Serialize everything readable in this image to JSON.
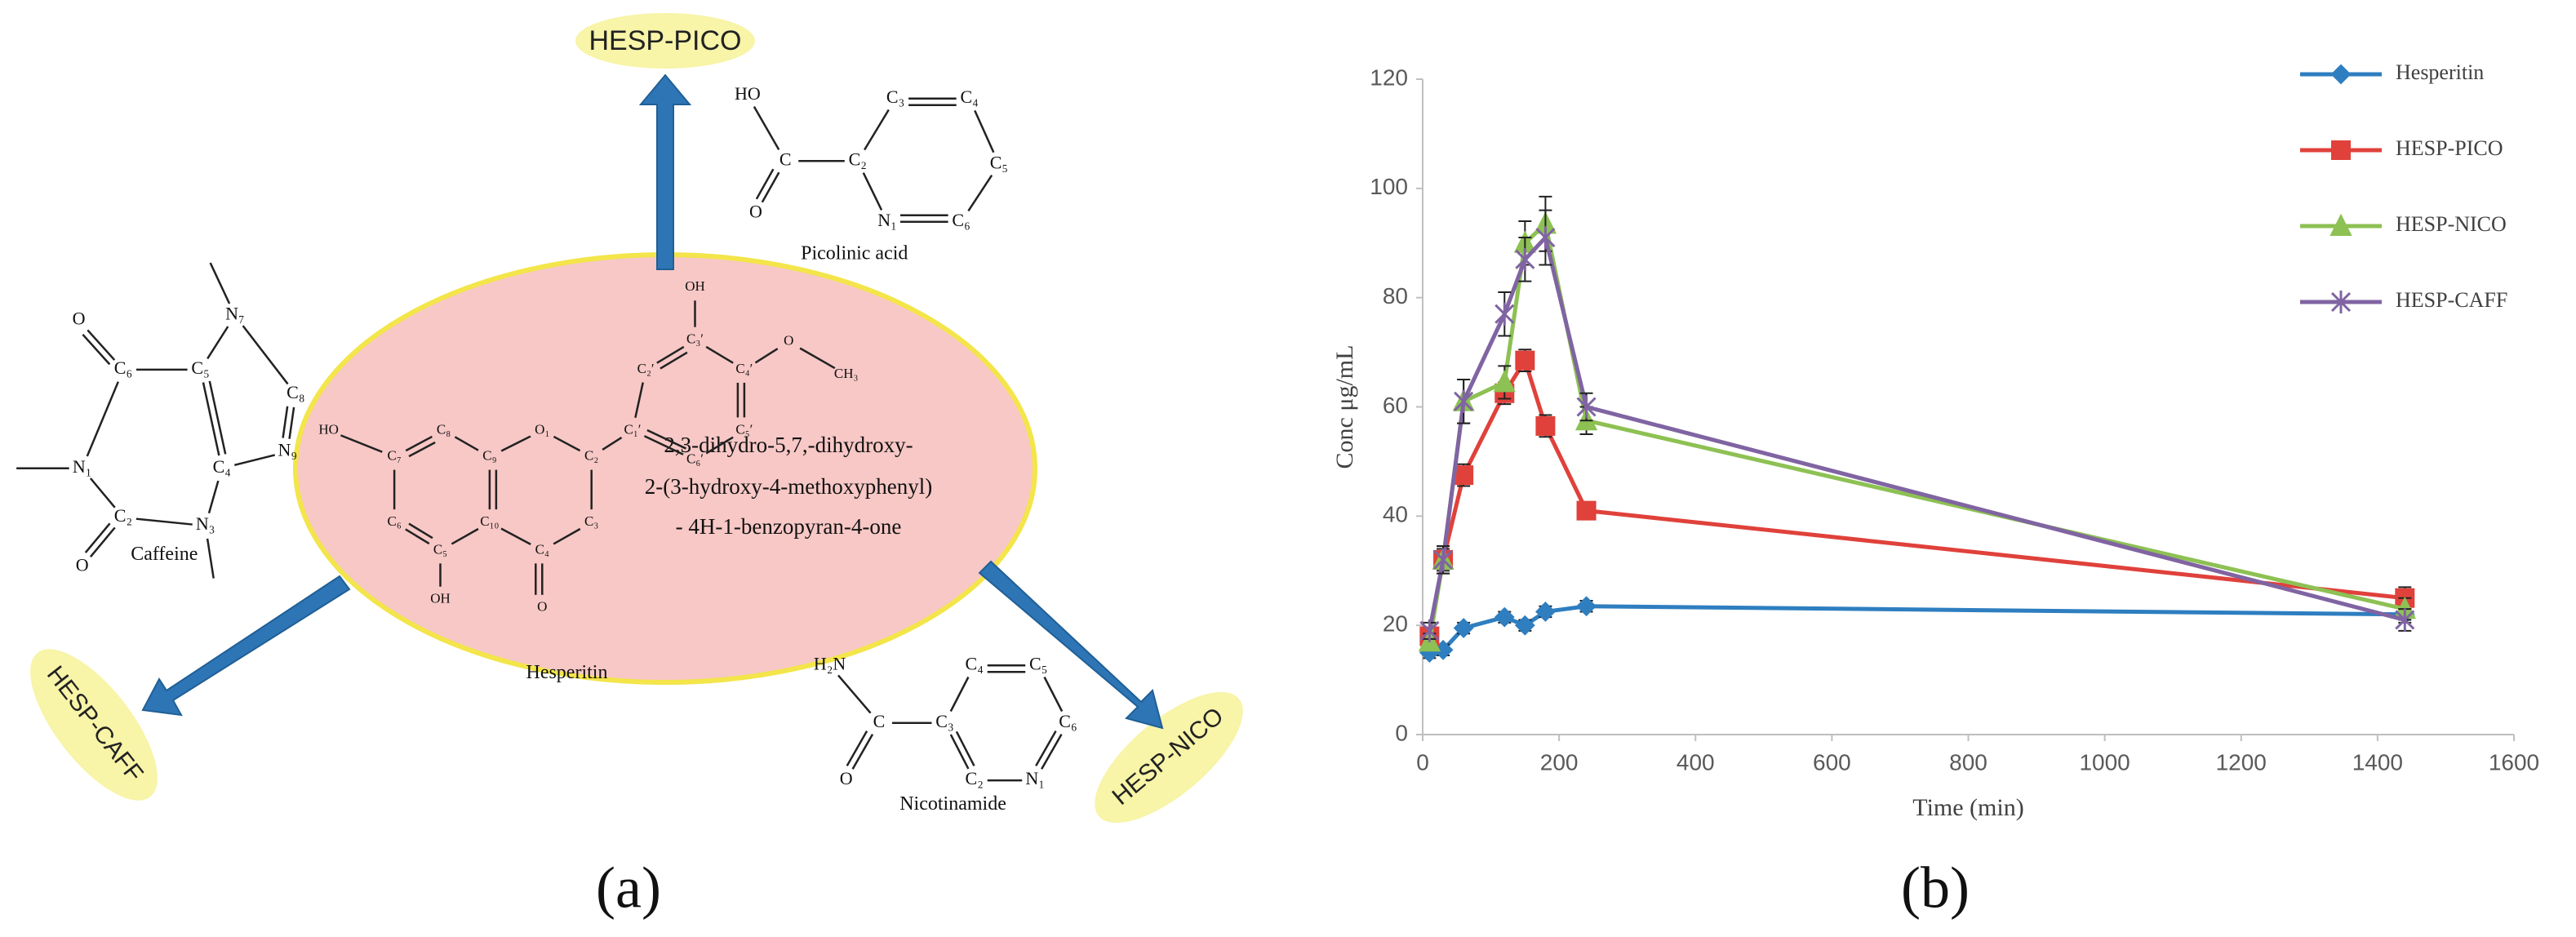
{
  "panel_labels": [
    "(a)",
    "(b)"
  ],
  "diagram": {
    "targets": [
      "HESP-PICO",
      "HESP-CAFF",
      "HESP-NICO"
    ],
    "iupac": [
      "2,3-dihydro-5,7,-dihydroxy-",
      "2-(3-hydroxy-4-methoxyphenyl)",
      "- 4H-1-benzopyran-4-one"
    ],
    "molecules": [
      {
        "name": "Hesperitin",
        "atoms": [
          "HO",
          "C₇",
          "C₈",
          "C₉",
          "O₁",
          "C₂",
          "C₁′",
          "C₂′",
          "C₃′",
          "OH",
          "C₄′",
          "O",
          "CH₃",
          "C₅′",
          "C₆′",
          "C₃",
          "C₄",
          "O",
          "C₁₀",
          "C₅",
          "OH",
          "C₆"
        ]
      },
      {
        "name": "Picolinic acid",
        "atoms": [
          "HO",
          "C",
          "O",
          "C₂",
          "C₃",
          "C₄",
          "C₅",
          "C₆",
          "N₁"
        ]
      },
      {
        "name": "Caffeine",
        "atoms": [
          "O",
          "C₆",
          "C₅",
          "N₇",
          "C₈",
          "N₉",
          "C₄",
          "N₃",
          "C₂",
          "O",
          "N₁"
        ]
      },
      {
        "name": "Nicotinamide",
        "atoms": [
          "H₂N",
          "C",
          "O",
          "C₃",
          "C₄",
          "C₅",
          "C₆",
          "N₁",
          "C₂"
        ]
      }
    ]
  },
  "chart_data": {
    "type": "line",
    "x_label": "Time (min)",
    "y_label": "Conc μg/mL",
    "x": [
      10,
      30,
      60,
      120,
      150,
      180,
      240,
      1440
    ],
    "xlim": [
      0,
      1600
    ],
    "xticks": [
      0,
      200,
      400,
      600,
      800,
      1000,
      1200,
      1400,
      1600
    ],
    "ylim": [
      0,
      120
    ],
    "yticks": [
      0,
      20,
      40,
      60,
      80,
      100,
      120
    ],
    "grid": false,
    "legend": "upper right",
    "series": [
      {
        "name": "Hesperitin",
        "color": "#2e7ec0",
        "marker": "diamond",
        "values": [
          15,
          15.5,
          19.5,
          21.5,
          20,
          22.5,
          23.5,
          22
        ],
        "errors": [
          1,
          1,
          1,
          1,
          1,
          1,
          1,
          1.5
        ]
      },
      {
        "name": "HESP-PICO",
        "color": "#e0413b",
        "marker": "square",
        "values": [
          18,
          32,
          47.5,
          62.5,
          68.5,
          56.5,
          41,
          25
        ],
        "errors": [
          1.5,
          2,
          2,
          2,
          2,
          2,
          1.5,
          2
        ]
      },
      {
        "name": "HESP-NICO",
        "color": "#8dc153",
        "marker": "triangle",
        "values": [
          17,
          32,
          61,
          64.5,
          90,
          93.5,
          57.5,
          23
        ],
        "errors": [
          1.5,
          2.5,
          4,
          3,
          4,
          5,
          2.5,
          2
        ]
      },
      {
        "name": "HESP-CAFF",
        "color": "#8064a2",
        "marker": "star",
        "values": [
          19,
          32,
          61,
          77,
          87,
          91,
          60,
          21
        ],
        "errors": [
          1.5,
          2.5,
          4,
          4,
          4,
          5,
          2.5,
          2
        ]
      }
    ]
  }
}
